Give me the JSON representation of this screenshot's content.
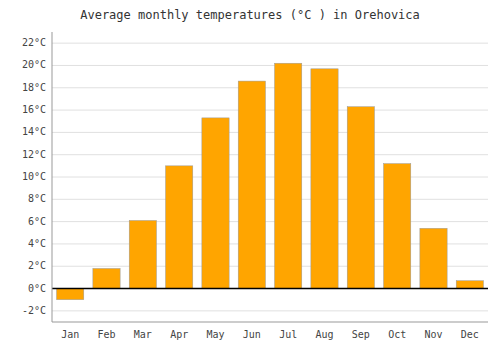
{
  "chart_data": {
    "type": "bar",
    "title": "Average monthly temperatures (°C ) in Orehovica",
    "categories": [
      "Jan",
      "Feb",
      "Mar",
      "Apr",
      "May",
      "Jun",
      "Jul",
      "Aug",
      "Sep",
      "Oct",
      "Nov",
      "Dec"
    ],
    "values": [
      -1.0,
      1.8,
      6.1,
      11.0,
      15.3,
      18.6,
      20.2,
      19.7,
      16.3,
      11.2,
      5.4,
      0.7
    ],
    "color": "#FFA500",
    "ylim": [
      -3,
      23
    ],
    "yticks": [
      {
        "value": -2,
        "label": "-2°C"
      },
      {
        "value": 0,
        "label": "0°C"
      },
      {
        "value": 2,
        "label": "2°C"
      },
      {
        "value": 4,
        "label": "4°C"
      },
      {
        "value": 6,
        "label": "6°C"
      },
      {
        "value": 8,
        "label": "8°C"
      },
      {
        "value": 10,
        "label": "10°C"
      },
      {
        "value": 12,
        "label": "12°C"
      },
      {
        "value": 14,
        "label": "14°C"
      },
      {
        "value": 16,
        "label": "16°C"
      },
      {
        "value": 18,
        "label": "18°C"
      },
      {
        "value": 20,
        "label": "20°C"
      },
      {
        "value": 22,
        "label": "22°C"
      }
    ],
    "grid": true
  }
}
